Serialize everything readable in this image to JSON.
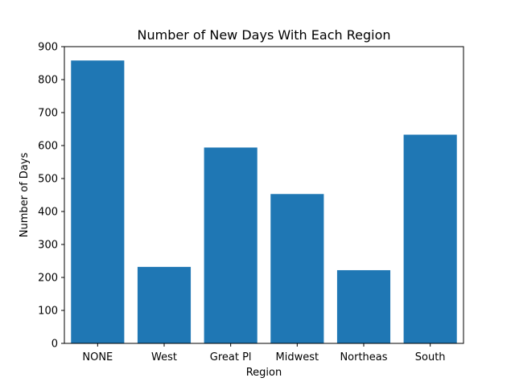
{
  "chart_data": {
    "type": "bar",
    "title": "Number of New Days With Each Region",
    "xlabel": "Region",
    "ylabel": "Number of Days",
    "categories": [
      "NONE",
      "West",
      "Great Pl",
      "Midwest",
      "Northeas",
      "South"
    ],
    "values": [
      858,
      232,
      594,
      453,
      222,
      633
    ],
    "ylim": [
      0,
      900
    ],
    "yticks": [
      0,
      100,
      200,
      300,
      400,
      500,
      600,
      700,
      800,
      900
    ],
    "bar_color": "#1f77b4",
    "grid": false,
    "legend": "none"
  }
}
